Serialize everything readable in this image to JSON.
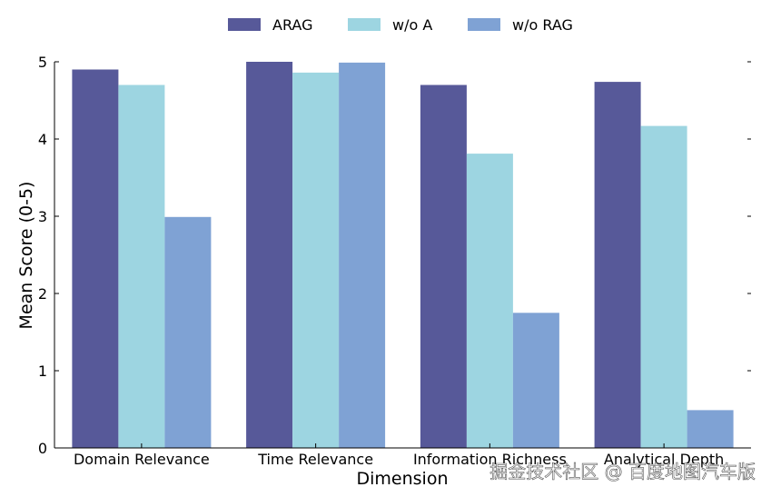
{
  "chart_data": {
    "type": "bar",
    "xlabel": "Dimension",
    "ylabel": "Mean Score (0-5)",
    "ylim": [
      0,
      5
    ],
    "yticks": [
      "0",
      "1",
      "2",
      "3",
      "4",
      "5"
    ],
    "categories": [
      "Domain Relevance",
      "Time Relevance",
      "Information Richness",
      "Analytical Depth"
    ],
    "series": [
      {
        "name": "ARAG",
        "color": "#575999",
        "values": [
          4.9,
          5.0,
          4.7,
          4.74
        ]
      },
      {
        "name": "w/o A",
        "color": "#9dd5e1",
        "values": [
          4.7,
          4.86,
          3.81,
          4.17
        ]
      },
      {
        "name": "w/o RAG",
        "color": "#7fa2d4",
        "values": [
          2.99,
          4.99,
          1.75,
          0.49
        ]
      }
    ],
    "legend_position": "top-center",
    "grid": false
  },
  "watermark": "掘金技术社区 @ 百度地图汽车版"
}
